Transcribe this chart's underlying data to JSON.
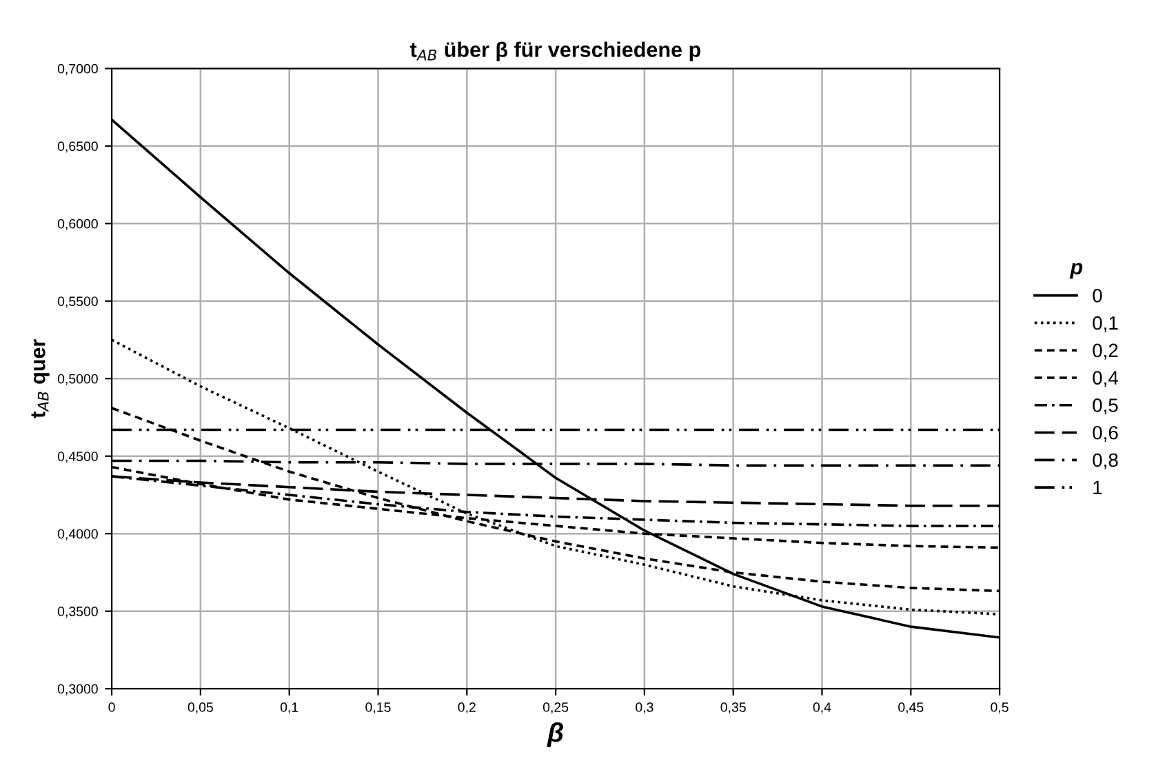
{
  "chart_data": {
    "type": "line",
    "title": "t$_{AB}$ über β für verschiedene p",
    "xlabel": "β",
    "ylabel": "t$_{AB}$ quer",
    "legend_title": "p",
    "legend": "right",
    "grid": true,
    "marker": "none",
    "x": [
      0,
      0.05,
      0.1,
      0.15,
      0.2,
      0.25,
      0.3,
      0.35,
      0.4,
      0.45,
      0.5
    ],
    "xlim": [
      0,
      0.5
    ],
    "xticks": [
      0,
      {
        "value": 0.05,
        "label": "0,05"
      },
      {
        "value": 0.1,
        "label": "0,1"
      },
      {
        "value": 0.15,
        "label": "0,15"
      },
      {
        "value": 0.2,
        "label": "0,2"
      },
      {
        "value": 0.25,
        "label": "0,25"
      },
      {
        "value": 0.3,
        "label": "0,3"
      },
      {
        "value": 0.35,
        "label": "0,35"
      },
      {
        "value": 0.4,
        "label": "0,4"
      },
      {
        "value": 0.45,
        "label": "0,45"
      },
      {
        "value": 0.5,
        "label": "0,5"
      }
    ],
    "ylim": [
      0.3,
      0.7
    ],
    "yticks": [
      {
        "value": 0.3,
        "label": "0,3000"
      },
      {
        "value": 0.35,
        "label": "0,3500"
      },
      {
        "value": 0.4,
        "label": "0,4000"
      },
      {
        "value": 0.45,
        "label": "0,4500"
      },
      {
        "value": 0.5,
        "label": "0,5000"
      },
      {
        "value": 0.55,
        "label": "0,5500"
      },
      {
        "value": 0.6,
        "label": "0,6000"
      },
      {
        "value": 0.65,
        "label": "0,6500"
      },
      {
        "value": 0.7,
        "label": "0,7000"
      }
    ],
    "series": [
      {
        "name": "0",
        "color": "#000000",
        "line_style": "solid",
        "values": [
          0.667,
          0.617,
          0.568,
          0.522,
          0.478,
          0.436,
          0.402,
          0.374,
          0.353,
          0.34,
          0.333
        ]
      },
      {
        "name": "0,1",
        "color": "#000000",
        "line_style": "dotted",
        "values": [
          0.525,
          0.495,
          0.468,
          0.44,
          0.413,
          0.392,
          0.38,
          0.366,
          0.357,
          0.351,
          0.348
        ]
      },
      {
        "name": "0,2",
        "color": "#000000",
        "line_style": "dashed",
        "values": [
          0.481,
          0.46,
          0.44,
          0.423,
          0.408,
          0.395,
          0.384,
          0.375,
          0.369,
          0.365,
          0.363
        ]
      },
      {
        "name": "0,4",
        "color": "#000000",
        "line_style": "dashed",
        "values": [
          0.443,
          0.432,
          0.422,
          0.416,
          0.41,
          0.405,
          0.4,
          0.397,
          0.394,
          0.392,
          0.391
        ]
      },
      {
        "name": "0,5",
        "color": "#000000",
        "line_style": "dashdot",
        "values": [
          0.437,
          0.431,
          0.425,
          0.419,
          0.414,
          0.411,
          0.409,
          0.407,
          0.406,
          0.405,
          0.405
        ]
      },
      {
        "name": "0,6",
        "color": "#000000",
        "line_style": "longdash",
        "values": [
          0.437,
          0.433,
          0.43,
          0.427,
          0.425,
          0.423,
          0.421,
          0.42,
          0.419,
          0.418,
          0.418
        ]
      },
      {
        "name": "0,8",
        "color": "#000000",
        "line_style": "longdashdot",
        "values": [
          0.447,
          0.447,
          0.446,
          0.446,
          0.445,
          0.445,
          0.445,
          0.444,
          0.444,
          0.444,
          0.444
        ]
      },
      {
        "name": "1",
        "color": "#000000",
        "line_style": "longdashdotdot",
        "values": [
          0.467,
          0.467,
          0.467,
          0.467,
          0.467,
          0.467,
          0.467,
          0.467,
          0.467,
          0.467,
          0.467
        ]
      }
    ]
  }
}
